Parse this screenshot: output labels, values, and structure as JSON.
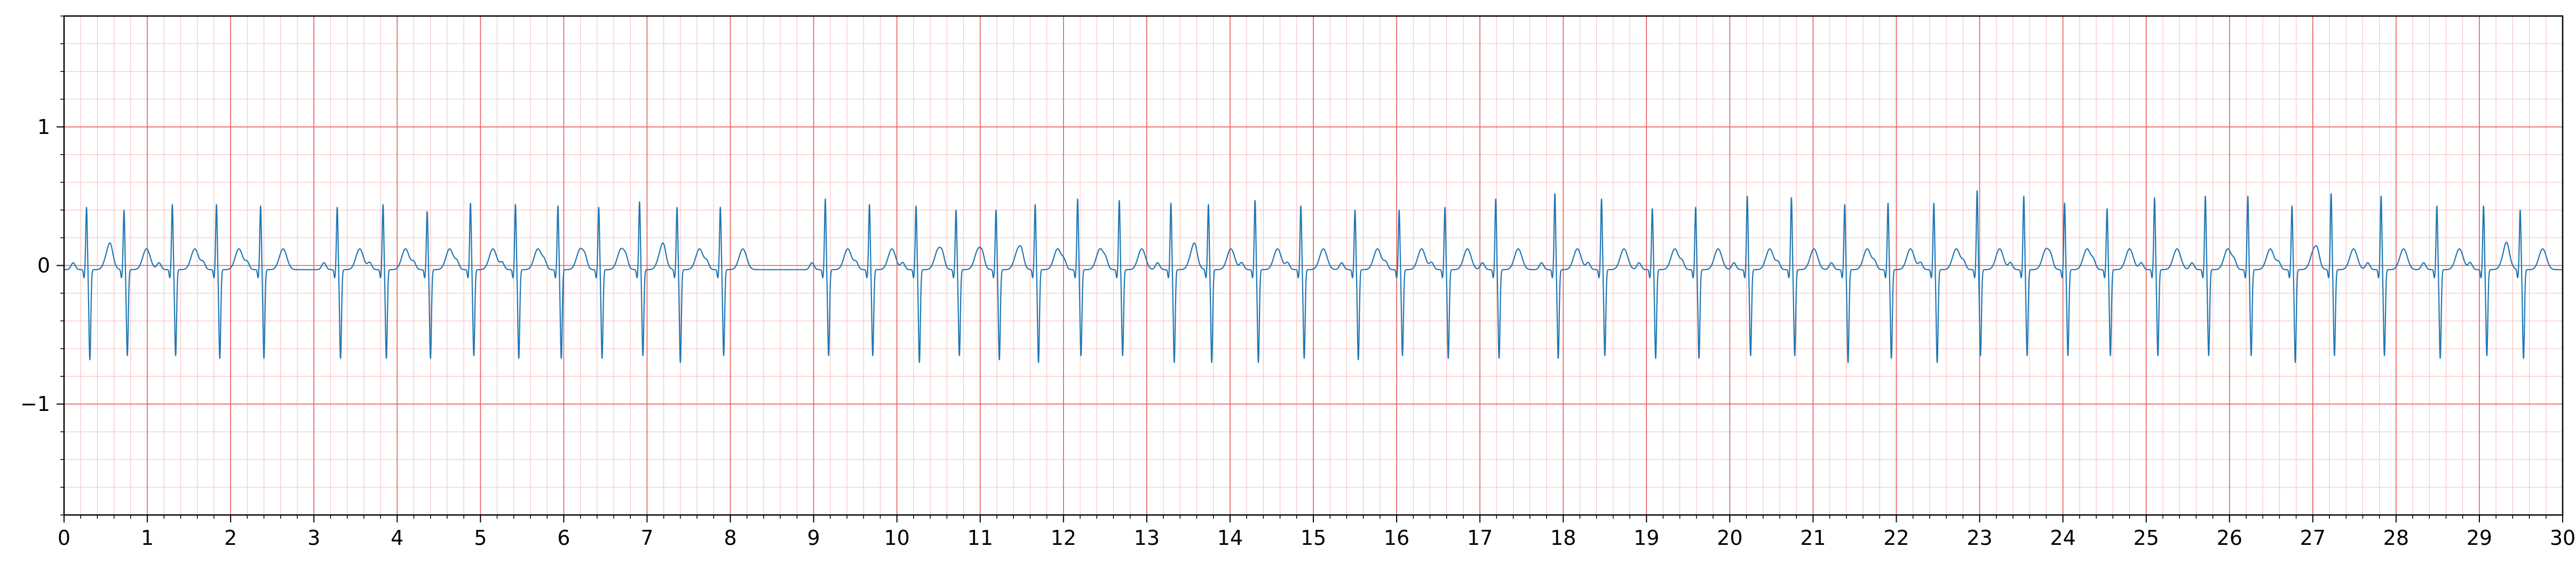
{
  "chart_data": {
    "type": "line",
    "title": "",
    "xlabel": "",
    "ylabel": "",
    "xlim": [
      0,
      30
    ],
    "ylim": [
      -1.8,
      1.8
    ],
    "x_ticks": [
      "0",
      "1",
      "2",
      "3",
      "4",
      "5",
      "6",
      "7",
      "8",
      "9",
      "10",
      "11",
      "12",
      "13",
      "14",
      "15",
      "16",
      "17",
      "18",
      "19",
      "20",
      "21",
      "22",
      "23",
      "24",
      "25",
      "26",
      "27",
      "28",
      "29",
      "30"
    ],
    "y_ticks": [
      {
        "value": 1,
        "label": "1"
      },
      {
        "value": 0,
        "label": "0"
      },
      {
        "value": -1,
        "label": "−1"
      }
    ],
    "grid": {
      "major": true,
      "minor": true,
      "major_x_step": 1,
      "minor_x_step": 0.2,
      "major_y_step": 1,
      "minor_y_step": 0.2
    },
    "series": [
      {
        "beat_times": [
          0.27,
          0.72,
          1.3,
          1.83,
          2.36,
          3.28,
          3.83,
          4.36,
          4.88,
          5.42,
          5.93,
          6.42,
          6.91,
          7.36,
          7.88,
          9.14,
          9.67,
          10.23,
          10.71,
          11.19,
          11.66,
          12.17,
          12.67,
          13.29,
          13.74,
          14.3,
          14.85,
          15.5,
          16.03,
          16.58,
          17.19,
          17.9,
          18.46,
          19.07,
          19.59,
          20.21,
          20.74,
          21.38,
          21.9,
          22.45,
          22.97,
          23.53,
          24.02,
          24.53,
          25.1,
          25.71,
          26.22,
          26.75,
          27.22,
          27.82,
          28.49,
          29.05,
          29.49
        ],
        "r_amplitudes": [
          0.42,
          0.4,
          0.44,
          0.44,
          0.43,
          0.42,
          0.44,
          0.39,
          0.45,
          0.44,
          0.43,
          0.42,
          0.46,
          0.42,
          0.42,
          0.48,
          0.44,
          0.43,
          0.4,
          0.4,
          0.44,
          0.48,
          0.47,
          0.45,
          0.44,
          0.47,
          0.43,
          0.4,
          0.4,
          0.42,
          0.48,
          0.52,
          0.48,
          0.41,
          0.42,
          0.5,
          0.49,
          0.44,
          0.45,
          0.45,
          0.54,
          0.5,
          0.45,
          0.41,
          0.49,
          0.5,
          0.5,
          0.43,
          0.52,
          0.5,
          0.43,
          0.43,
          0.4
        ],
        "s_amplitudes": [
          -0.73,
          -0.7,
          -0.7,
          -0.72,
          -0.72,
          -0.72,
          -0.72,
          -0.72,
          -0.7,
          -0.72,
          -0.72,
          -0.72,
          -0.7,
          -0.75,
          -0.7,
          -0.7,
          -0.7,
          -0.75,
          -0.7,
          -0.73,
          -0.75,
          -0.7,
          -0.7,
          -0.75,
          -0.75,
          -0.75,
          -0.72,
          -0.73,
          -0.7,
          -0.72,
          -0.72,
          -0.72,
          -0.7,
          -0.72,
          -0.72,
          -0.7,
          -0.7,
          -0.75,
          -0.72,
          -0.75,
          -0.7,
          -0.7,
          -0.7,
          -0.7,
          -0.7,
          -0.7,
          -0.7,
          -0.75,
          -0.7,
          -0.7,
          -0.72,
          -0.7,
          -0.72
        ],
        "t_amplitude": 0.15,
        "p_amplitude": 0.05,
        "baseline": -0.03
      }
    ]
  },
  "colors": {
    "background": "#ffffff",
    "major_grid": "#e85a5a",
    "minor_grid": "#f7c3c3",
    "trace": "#1f77b4",
    "axis": "#000000"
  }
}
